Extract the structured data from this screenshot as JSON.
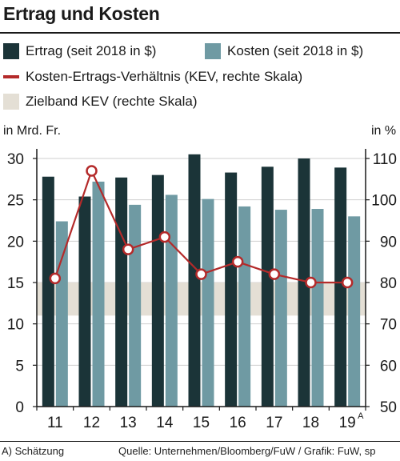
{
  "title": "Ertrag und Kosten",
  "legend": {
    "ertrag": "Ertrag (seit 2018 in $)",
    "kosten": "Kosten (seit 2018 in $)",
    "kev": "Kosten-Ertrags-Verhältnis (KEV, rechte Skala)",
    "zielband": "Zielband KEV (rechte Skala)"
  },
  "left_axis_unit": "in Mrd. Fr.",
  "right_axis_unit": "in %",
  "footnote": "A) Schätzung",
  "source": "Quelle: Unternehmen/Bloomberg/FuW / Grafik: FuW, sp",
  "colors": {
    "ertrag": "#1b3438",
    "kosten": "#6f9aa3",
    "kev": "#b42a2a",
    "zielband": "#e4dfd5"
  },
  "chart_data": {
    "type": "bar",
    "title": "Ertrag und Kosten",
    "categories": [
      "11",
      "12",
      "13",
      "14",
      "15",
      "16",
      "17",
      "18",
      "19"
    ],
    "category_superscripts": [
      "",
      "",
      "",
      "",
      "",
      "",
      "",
      "",
      "A"
    ],
    "series": [
      {
        "name": "Ertrag (seit 2018 in $)",
        "axis": "left",
        "values": [
          27.8,
          25.4,
          27.7,
          28.0,
          30.5,
          28.3,
          29.0,
          30.0,
          28.9
        ]
      },
      {
        "name": "Kosten (seit 2018 in $)",
        "axis": "left",
        "values": [
          22.4,
          27.2,
          24.4,
          25.6,
          25.1,
          24.2,
          23.8,
          23.9,
          23.0
        ]
      },
      {
        "name": "Kosten-Ertrags-Verhältnis (KEV, rechte Skala)",
        "type": "line",
        "axis": "right",
        "values": [
          81,
          107,
          88,
          91,
          82,
          85,
          82,
          80,
          80
        ]
      }
    ],
    "target_band": {
      "name": "Zielband KEV (rechte Skala)",
      "axis": "right",
      "from": 72,
      "to": 80
    },
    "left_axis": {
      "label": "in Mrd. Fr.",
      "ylim": [
        0,
        30
      ],
      "ticks": [
        0,
        5,
        10,
        15,
        20,
        25,
        30
      ]
    },
    "right_axis": {
      "label": "in %",
      "ylim": [
        50,
        110
      ],
      "ticks": [
        50,
        60,
        70,
        80,
        90,
        100,
        110
      ]
    },
    "grid": true
  }
}
